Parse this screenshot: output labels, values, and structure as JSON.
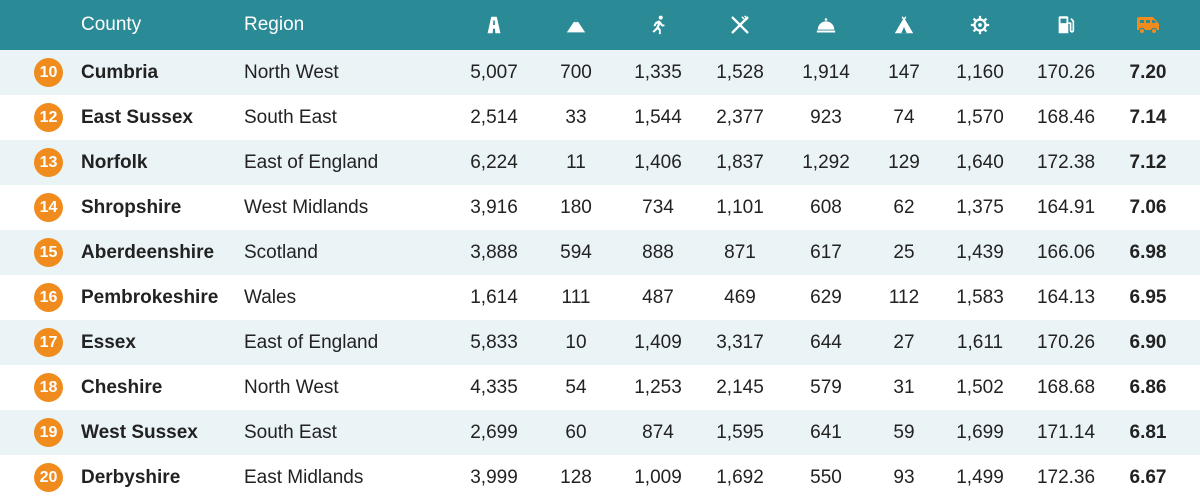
{
  "header": {
    "county": "County",
    "region": "Region",
    "icons": [
      "road-icon",
      "mountain-icon",
      "running-icon",
      "restaurant-icon",
      "hotel-icon",
      "campsite-icon",
      "attraction-icon",
      "fuel-icon",
      "campervan-icon"
    ]
  },
  "accent": "#f08c1e",
  "header_bg": "#2a8a96",
  "rows": [
    {
      "rank": "10",
      "county": "Cumbria",
      "region": "North West",
      "c1": "5,007",
      "c2": "700",
      "c3": "1,335",
      "c4": "1,528",
      "c5": "1,914",
      "c6": "147",
      "c7": "1,160",
      "c8": "170.26",
      "score": "7.20"
    },
    {
      "rank": "12",
      "county": "East Sussex",
      "region": "South East",
      "c1": "2,514",
      "c2": "33",
      "c3": "1,544",
      "c4": "2,377",
      "c5": "923",
      "c6": "74",
      "c7": "1,570",
      "c8": "168.46",
      "score": "7.14"
    },
    {
      "rank": "13",
      "county": "Norfolk",
      "region": "East of England",
      "c1": "6,224",
      "c2": "11",
      "c3": "1,406",
      "c4": "1,837",
      "c5": "1,292",
      "c6": "129",
      "c7": "1,640",
      "c8": "172.38",
      "score": "7.12"
    },
    {
      "rank": "14",
      "county": "Shropshire",
      "region": "West Midlands",
      "c1": "3,916",
      "c2": "180",
      "c3": "734",
      "c4": "1,101",
      "c5": "608",
      "c6": "62",
      "c7": "1,375",
      "c8": "164.91",
      "score": "7.06"
    },
    {
      "rank": "15",
      "county": "Aberdeenshire",
      "region": "Scotland",
      "c1": "3,888",
      "c2": "594",
      "c3": "888",
      "c4": "871",
      "c5": "617",
      "c6": "25",
      "c7": "1,439",
      "c8": "166.06",
      "score": "6.98"
    },
    {
      "rank": "16",
      "county": "Pembrokeshire",
      "region": "Wales",
      "c1": "1,614",
      "c2": "111",
      "c3": "487",
      "c4": "469",
      "c5": "629",
      "c6": "112",
      "c7": "1,583",
      "c8": "164.13",
      "score": "6.95"
    },
    {
      "rank": "17",
      "county": "Essex",
      "region": "East of England",
      "c1": "5,833",
      "c2": "10",
      "c3": "1,409",
      "c4": "3,317",
      "c5": "644",
      "c6": "27",
      "c7": "1,611",
      "c8": "170.26",
      "score": "6.90"
    },
    {
      "rank": "18",
      "county": "Cheshire",
      "region": "North West",
      "c1": "4,335",
      "c2": "54",
      "c3": "1,253",
      "c4": "2,145",
      "c5": "579",
      "c6": "31",
      "c7": "1,502",
      "c8": "168.68",
      "score": "6.86"
    },
    {
      "rank": "19",
      "county": "West Sussex",
      "region": "South East",
      "c1": "2,699",
      "c2": "60",
      "c3": "874",
      "c4": "1,595",
      "c5": "641",
      "c6": "59",
      "c7": "1,699",
      "c8": "171.14",
      "score": "6.81"
    },
    {
      "rank": "20",
      "county": "Derbyshire",
      "region": "East Midlands",
      "c1": "3,999",
      "c2": "128",
      "c3": "1,009",
      "c4": "1,692",
      "c5": "550",
      "c6": "93",
      "c7": "1,499",
      "c8": "172.36",
      "score": "6.67"
    }
  ]
}
